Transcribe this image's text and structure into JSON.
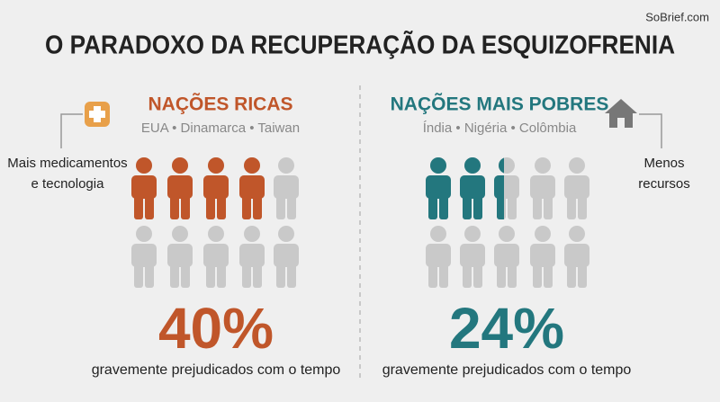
{
  "brand": "SoBrief.com",
  "title": "O PARADOXO DA RECUPERAÇÃO DA ESQUIZOFRENIA",
  "panels": [
    {
      "heading": "NAÇÕES RICAS",
      "countries": "EUA • Dinamarca • Taiwan",
      "note": [
        "Mais medicamentos",
        "e tecnologia"
      ],
      "share": {
        "value": 40,
        "label": "40%"
      },
      "caption": "gravemente prejudicados com o tempo",
      "color": "#c0562a"
    },
    {
      "heading": "NAÇÕES MAIS POBRES",
      "countries": "Índia • Nigéria • Colômbia",
      "note": [
        "Menos",
        "recursos"
      ],
      "share": {
        "value": 24,
        "label": "24%"
      },
      "caption": "gravemente prejudicados com o tempo",
      "color": "#23777e"
    }
  ]
}
